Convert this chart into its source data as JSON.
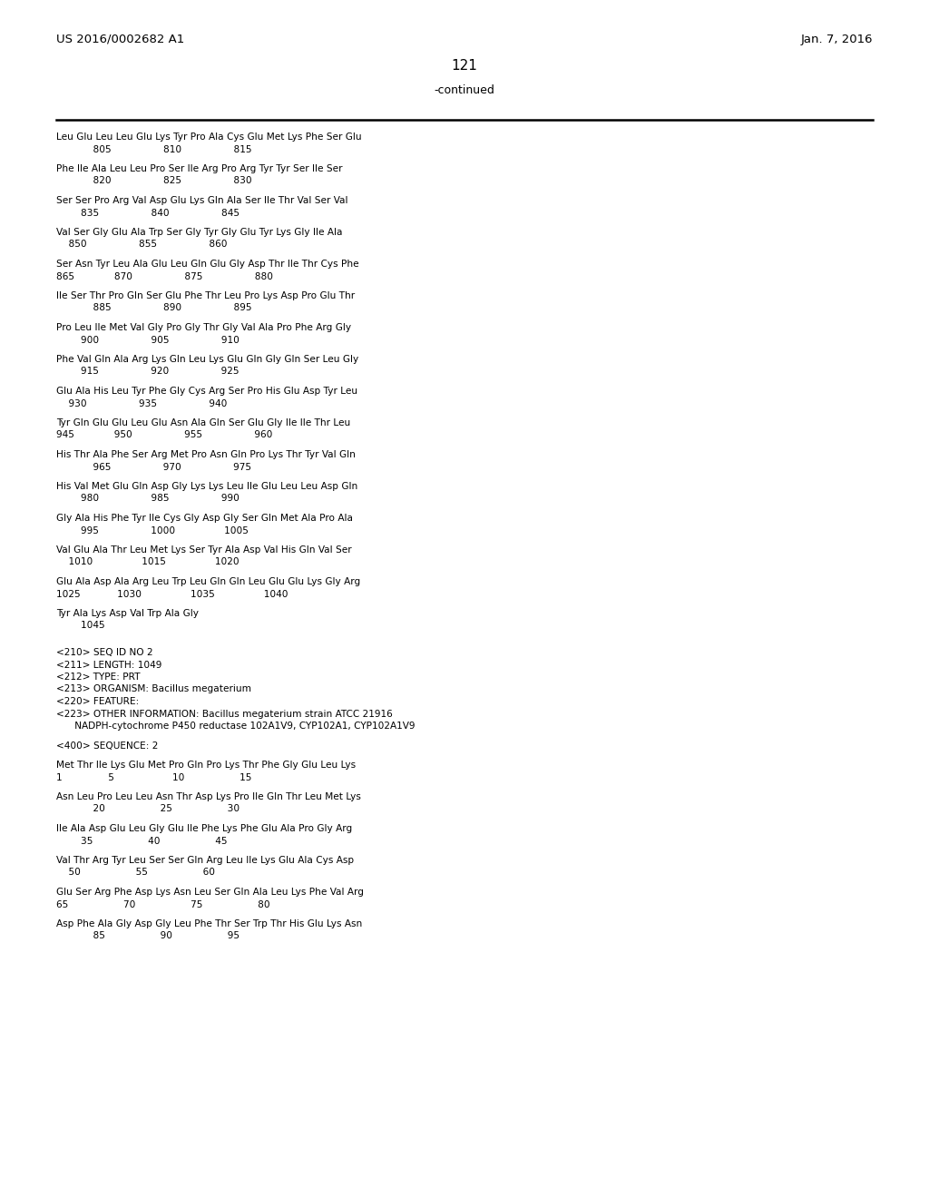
{
  "header_left": "US 2016/0002682 A1",
  "header_right": "Jan. 7, 2016",
  "page_number": "121",
  "continued_label": "-continued",
  "background_color": "#ffffff",
  "text_color": "#000000",
  "content_lines": [
    "Leu Glu Leu Leu Glu Lys Tyr Pro Ala Cys Glu Met Lys Phe Ser Glu",
    "            805                 810                 815",
    "",
    "Phe Ile Ala Leu Leu Pro Ser Ile Arg Pro Arg Tyr Tyr Ser Ile Ser",
    "            820                 825                 830",
    "",
    "Ser Ser Pro Arg Val Asp Glu Lys Gln Ala Ser Ile Thr Val Ser Val",
    "        835                 840                 845",
    "",
    "Val Ser Gly Glu Ala Trp Ser Gly Tyr Gly Glu Tyr Lys Gly Ile Ala",
    "    850                 855                 860",
    "",
    "Ser Asn Tyr Leu Ala Glu Leu Gln Glu Gly Asp Thr Ile Thr Cys Phe",
    "865             870                 875                 880",
    "",
    "Ile Ser Thr Pro Gln Ser Glu Phe Thr Leu Pro Lys Asp Pro Glu Thr",
    "            885                 890                 895",
    "",
    "Pro Leu Ile Met Val Gly Pro Gly Thr Gly Val Ala Pro Phe Arg Gly",
    "        900                 905                 910",
    "",
    "Phe Val Gln Ala Arg Lys Gln Leu Lys Glu Gln Gly Gln Ser Leu Gly",
    "        915                 920                 925",
    "",
    "Glu Ala His Leu Tyr Phe Gly Cys Arg Ser Pro His Glu Asp Tyr Leu",
    "    930                 935                 940",
    "",
    "Tyr Gln Glu Glu Leu Glu Asn Ala Gln Ser Glu Gly Ile Ile Thr Leu",
    "945             950                 955                 960",
    "",
    "His Thr Ala Phe Ser Arg Met Pro Asn Gln Pro Lys Thr Tyr Val Gln",
    "            965                 970                 975",
    "",
    "His Val Met Glu Gln Asp Gly Lys Lys Leu Ile Glu Leu Leu Asp Gln",
    "        980                 985                 990",
    "",
    "Gly Ala His Phe Tyr Ile Cys Gly Asp Gly Ser Gln Met Ala Pro Ala",
    "        995                 1000                1005",
    "",
    "Val Glu Ala Thr Leu Met Lys Ser Tyr Ala Asp Val His Gln Val Ser",
    "    1010                1015                1020",
    "",
    "Glu Ala Asp Ala Arg Leu Trp Leu Gln Gln Leu Glu Glu Lys Gly Arg",
    "1025            1030                1035                1040",
    "",
    "Tyr Ala Lys Asp Val Trp Ala Gly",
    "        1045",
    "",
    "",
    "<210> SEQ ID NO 2",
    "<211> LENGTH: 1049",
    "<212> TYPE: PRT",
    "<213> ORGANISM: Bacillus megaterium",
    "<220> FEATURE:",
    "<223> OTHER INFORMATION: Bacillus megaterium strain ATCC 21916",
    "      NADPH-cytochrome P450 reductase 102A1V9, CYP102A1, CYP102A1V9",
    "",
    "<400> SEQUENCE: 2",
    "",
    "Met Thr Ile Lys Glu Met Pro Gln Pro Lys Thr Phe Gly Glu Leu Lys",
    "1               5                   10                  15",
    "",
    "Asn Leu Pro Leu Leu Asn Thr Asp Lys Pro Ile Gln Thr Leu Met Lys",
    "            20                  25                  30",
    "",
    "Ile Ala Asp Glu Leu Gly Glu Ile Phe Lys Phe Glu Ala Pro Gly Arg",
    "        35                  40                  45",
    "",
    "Val Thr Arg Tyr Leu Ser Ser Gln Arg Leu Ile Lys Glu Ala Cys Asp",
    "    50                  55                  60",
    "",
    "Glu Ser Arg Phe Asp Lys Asn Leu Ser Gln Ala Leu Lys Phe Val Arg",
    "65                  70                  75                  80",
    "",
    "Asp Phe Ala Gly Asp Gly Leu Phe Thr Ser Trp Thr His Glu Lys Asn",
    "            85                  90                  95"
  ]
}
